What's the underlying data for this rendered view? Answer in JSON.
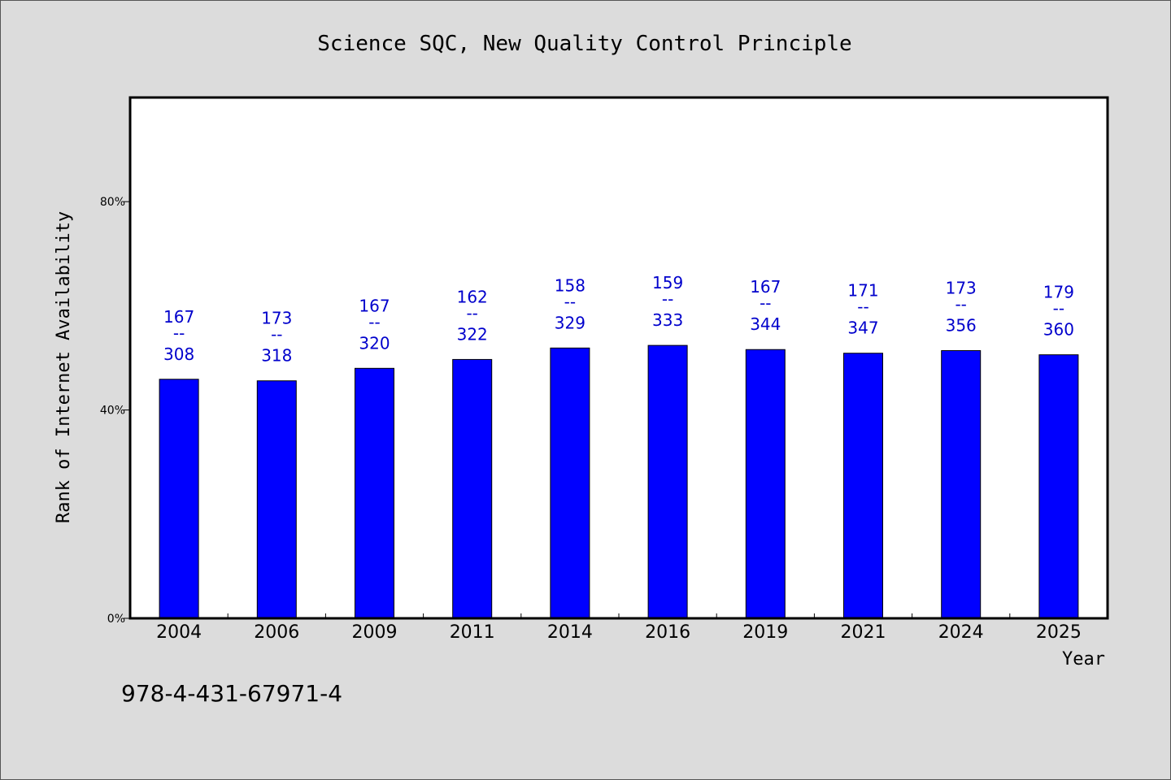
{
  "chart_data": {
    "type": "bar",
    "title": "Science SQC, New Quality Control Principle",
    "xlabel": "Year",
    "ylabel": "Rank of Internet Availability",
    "categories": [
      "2004",
      "2006",
      "2009",
      "2011",
      "2014",
      "2016",
      "2019",
      "2021",
      "2024",
      "2025"
    ],
    "values": [
      45.9,
      45.6,
      48.0,
      49.7,
      51.9,
      52.4,
      51.6,
      50.9,
      51.4,
      50.6
    ],
    "value_unit": "%",
    "ylim": [
      0,
      100
    ],
    "yticks": [
      {
        "value": 0,
        "label": "0%"
      },
      {
        "value": 40,
        "label": "40%"
      },
      {
        "value": 80,
        "label": "80%"
      }
    ],
    "data_labels": [
      {
        "top": "167",
        "sep": "--",
        "bottom": "308"
      },
      {
        "top": "173",
        "sep": "--",
        "bottom": "318"
      },
      {
        "top": "167",
        "sep": "--",
        "bottom": "320"
      },
      {
        "top": "162",
        "sep": "--",
        "bottom": "322"
      },
      {
        "top": "158",
        "sep": "--",
        "bottom": "329"
      },
      {
        "top": "159",
        "sep": "--",
        "bottom": "333"
      },
      {
        "top": "167",
        "sep": "--",
        "bottom": "344"
      },
      {
        "top": "171",
        "sep": "--",
        "bottom": "347"
      },
      {
        "top": "173",
        "sep": "--",
        "bottom": "356"
      },
      {
        "top": "179",
        "sep": "--",
        "bottom": "360"
      }
    ],
    "grid": false,
    "legend": "none",
    "colors": {
      "bar": "#0000ff",
      "label": "#0000cc",
      "plot_background": "#ffffff",
      "page_background": "#dcdcdc"
    }
  },
  "footer": {
    "code": "978-4-431-67971-4"
  }
}
